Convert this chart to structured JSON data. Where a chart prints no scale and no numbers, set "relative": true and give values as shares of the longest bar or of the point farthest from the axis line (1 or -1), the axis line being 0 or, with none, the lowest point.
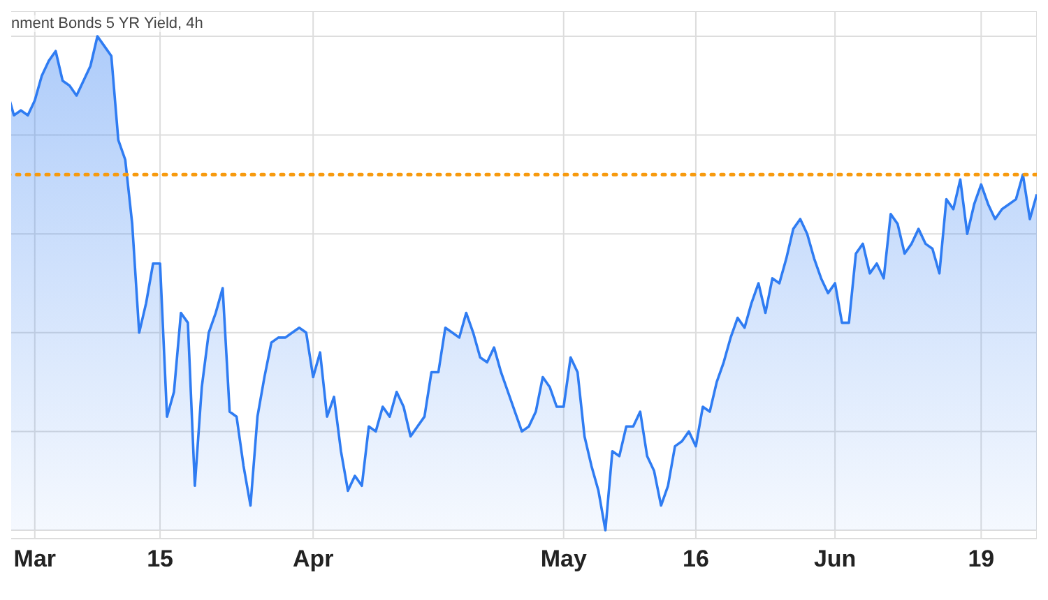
{
  "chart_data": {
    "type": "area",
    "title": "nment Bonds 5 YR Yield, 4h",
    "relative": true,
    "grid": true,
    "color": "#2f7cf2",
    "categories": [
      null,
      null,
      null,
      null,
      null,
      "Mar",
      null,
      null,
      null,
      null,
      null,
      null,
      null,
      null,
      null,
      null,
      null,
      null,
      null,
      null,
      null,
      null,
      null,
      "15",
      null,
      null,
      null,
      null,
      null,
      null,
      null,
      null,
      null,
      null,
      null,
      null,
      null,
      null,
      null,
      null,
      null,
      null,
      null,
      null,
      null,
      "Apr",
      null,
      null,
      null,
      null,
      null,
      null,
      null,
      null,
      null,
      null,
      null,
      null,
      null,
      null,
      null,
      null,
      null,
      null,
      null,
      null,
      null,
      null,
      null,
      null,
      null,
      null,
      null,
      null,
      null,
      null,
      null,
      null,
      null,
      null,
      null,
      "May",
      null,
      null,
      null,
      null,
      null,
      null,
      null,
      null,
      null,
      null,
      null,
      null,
      null,
      null,
      null,
      null,
      null,
      null,
      "16",
      null,
      null,
      null,
      null,
      null,
      null,
      null,
      null,
      null,
      null,
      null,
      null,
      null,
      null,
      null,
      null,
      null,
      null,
      null,
      "Jun",
      null,
      null,
      null,
      null,
      null,
      null,
      null,
      null,
      null,
      null,
      null,
      null,
      null,
      null,
      null,
      null,
      null,
      null,
      null,
      null,
      "19",
      null,
      null,
      null,
      null,
      null,
      null,
      null,
      null
    ],
    "values": [
      0.82,
      0.89,
      0.84,
      0.85,
      0.84,
      0.87,
      0.92,
      0.95,
      0.97,
      0.91,
      0.9,
      0.88,
      0.91,
      0.94,
      1,
      0.98,
      0.96,
      0.79,
      0.75,
      0.62,
      0.4,
      0.46,
      0.54,
      0.54,
      0.23,
      0.28,
      0.44,
      0.42,
      0.09,
      0.29,
      0.4,
      0.44,
      0.49,
      0.24,
      0.23,
      0.13,
      0.05,
      0.23,
      0.31,
      0.38,
      0.39,
      0.39,
      0.4,
      0.41,
      0.4,
      0.31,
      0.36,
      0.23,
      0.27,
      0.16,
      0.08,
      0.11,
      0.09,
      0.21,
      0.2,
      0.25,
      0.23,
      0.28,
      0.25,
      0.19,
      0.21,
      0.23,
      0.32,
      0.32,
      0.41,
      0.4,
      0.39,
      0.44,
      0.4,
      0.35,
      0.34,
      0.37,
      0.32,
      0.28,
      0.24,
      0.2,
      0.21,
      0.24,
      0.31,
      0.29,
      0.25,
      0.25,
      0.35,
      0.32,
      0.19,
      0.13,
      0.08,
      0,
      0.16,
      0.15,
      0.21,
      0.21,
      0.24,
      0.15,
      0.12,
      0.05,
      0.09,
      0.17,
      0.18,
      0.2,
      0.17,
      0.25,
      0.24,
      0.3,
      0.34,
      0.39,
      0.43,
      0.41,
      0.46,
      0.5,
      0.44,
      0.51,
      0.5,
      0.55,
      0.61,
      0.63,
      0.6,
      0.55,
      0.51,
      0.48,
      0.5,
      0.42,
      0.42,
      0.56,
      0.58,
      0.52,
      0.54,
      0.51,
      0.64,
      0.62,
      0.56,
      0.58,
      0.61,
      0.58,
      0.57,
      0.52,
      0.67,
      0.65,
      0.71,
      0.6,
      0.66,
      0.7,
      0.66,
      0.63,
      0.65,
      0.66,
      0.67,
      0.72,
      0.63,
      0.68
    ],
    "ref_lines": [
      {
        "axis": "y",
        "value": 0.72,
        "color": "#f79a0e",
        "line_style": "dotted"
      }
    ]
  }
}
